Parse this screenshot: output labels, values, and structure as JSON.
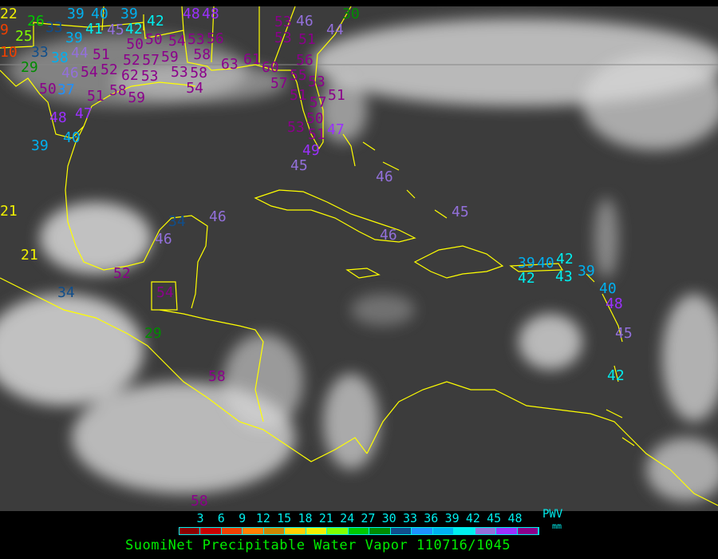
{
  "title": "SuomiNet Precipitable Water Vapor 110716/1045",
  "legend": {
    "unit": "PWV",
    "unit_sub": "mm",
    "ticks": [
      "3",
      "6",
      "9",
      "12",
      "15",
      "18",
      "21",
      "24",
      "27",
      "30",
      "33",
      "36",
      "39",
      "42",
      "45",
      "48"
    ],
    "colors": [
      "#8b0000",
      "#c80000",
      "#f04000",
      "#ff8000",
      "#cc8800",
      "#ffd000",
      "#f0f000",
      "#80ff00",
      "#00c800",
      "#008c00",
      "#104e8b",
      "#1e90ff",
      "#00b0f0",
      "#00eeee",
      "#9370db",
      "#9b30ff",
      "#8b008b"
    ]
  },
  "map": {
    "coastline_color": "#ffff00",
    "station_values": [
      "22",
      "9",
      "26",
      "25",
      "10",
      "33",
      "39",
      "40",
      "41",
      "39",
      "42",
      "42",
      "45",
      "33",
      "38",
      "44",
      "29",
      "39",
      "50",
      "50",
      "51",
      "52",
      "57",
      "59",
      "54",
      "53",
      "56",
      "58",
      "48",
      "48",
      "63",
      "61",
      "60",
      "57",
      "55",
      "53",
      "56",
      "53",
      "53",
      "46",
      "51",
      "44",
      "54",
      "52",
      "62",
      "53",
      "53",
      "58",
      "54",
      "51",
      "58",
      "59",
      "50",
      "37",
      "46",
      "47",
      "48",
      "40",
      "39",
      "51",
      "57",
      "51",
      "50",
      "51",
      "53",
      "47",
      "49",
      "45",
      "46",
      "45",
      "46",
      "21",
      "21",
      "34",
      "46",
      "46",
      "52",
      "34",
      "54",
      "29",
      "58",
      "58",
      "39",
      "40",
      "42",
      "42",
      "43",
      "39",
      "40",
      "48",
      "45",
      "42",
      "30"
    ]
  }
}
